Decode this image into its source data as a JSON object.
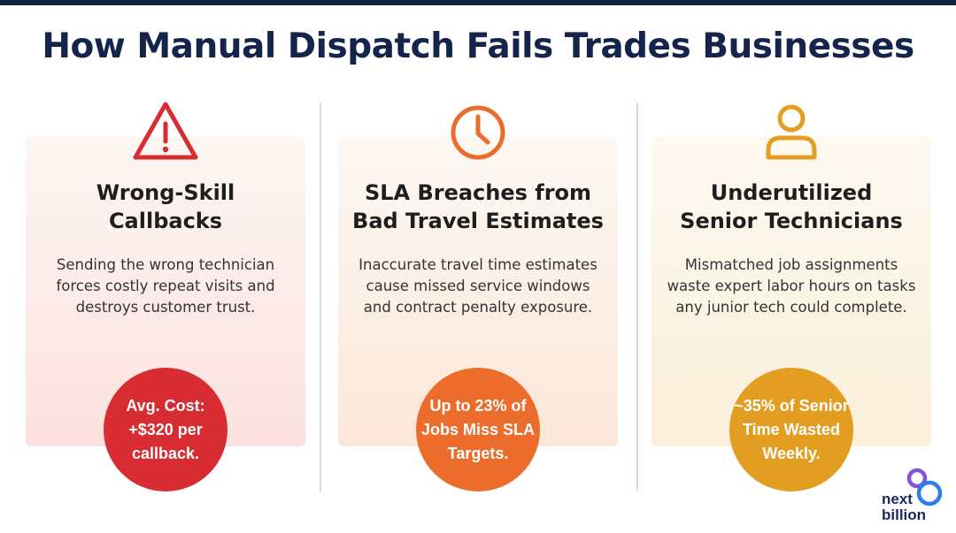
{
  "title": "How Manual Dispatch Fails Trades Businesses",
  "columns": [
    {
      "icon": "warning-triangle-icon",
      "heading": [
        "Wrong-Skill",
        "Callbacks"
      ],
      "body": [
        "Sending the wrong technician",
        "forces costly repeat visits and",
        "destroys customer trust."
      ],
      "stat": [
        "Avg. Cost:",
        "+$320 per",
        "callback."
      ],
      "accent": "#d62c32"
    },
    {
      "icon": "clock-icon",
      "heading": [
        "SLA Breaches from",
        "Bad Travel Estimates"
      ],
      "body": [
        "Inaccurate travel time estimates",
        "cause missed service windows",
        "and contract penalty exposure."
      ],
      "stat": [
        "Up to 23% of",
        "Jobs Miss SLA",
        "Targets."
      ],
      "accent": "#ec6c2c"
    },
    {
      "icon": "user-icon",
      "heading": [
        "Underutilized",
        "Senior Technicians"
      ],
      "body": [
        "Mismatched job assignments",
        "waste expert labor hours on tasks",
        "any junior tech could complete."
      ],
      "stat": [
        "~35% of Senior",
        "Time Wasted",
        "Weekly."
      ],
      "accent": "#e39e22"
    }
  ],
  "logo": {
    "line1": "next",
    "line2": "billion",
    "colors": [
      "#8a4fd8",
      "#2f7ee8"
    ]
  }
}
